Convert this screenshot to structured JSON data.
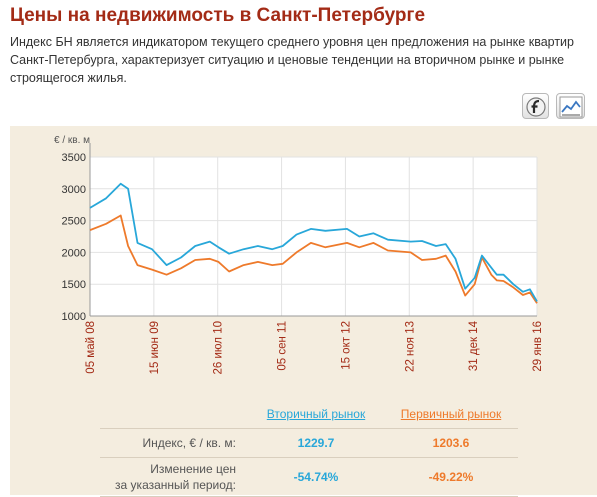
{
  "page": {
    "title": "Цены на недвижимость в Санкт-Петербурге",
    "description": "Индекс БН является индикатором текущего среднего уровня цен предложения на рынке квартир Санкт-Петербурга, характеризует ситуацию и ценовые тенденции на вторичном рынке и рынке строящегося жилья."
  },
  "toolbar": {
    "flash_icon": "flash-icon",
    "chart_icon": "line-chart-icon"
  },
  "colors": {
    "secondary": "#28a7d9",
    "primary": "#ee7a2b",
    "title": "#a32b16",
    "panel": "#f4eddf"
  },
  "chart_data": {
    "type": "line",
    "ylabel": "€ / кв. м",
    "ylim": [
      1000,
      3500
    ],
    "yticks": [
      1000,
      1500,
      2000,
      2500,
      3000,
      3500
    ],
    "xlim": [
      "2008-05-05",
      "2016-01-29"
    ],
    "xticks": [
      "05 май 08",
      "15 июн 09",
      "26 июл 10",
      "05 сен 11",
      "15 окт 12",
      "22 ноя 13",
      "31 дек 14",
      "29 янв 16"
    ],
    "grid": true,
    "series": [
      {
        "name": "Вторичный рынок",
        "color": "#28a7d9",
        "x": [
          "2008-05-05",
          "2008-08-15",
          "2008-11-15",
          "2009-01-01",
          "2009-03-01",
          "2009-06-01",
          "2009-09-01",
          "2009-12-01",
          "2010-03-01",
          "2010-06-01",
          "2010-07-26",
          "2010-10-01",
          "2011-01-01",
          "2011-04-01",
          "2011-07-01",
          "2011-09-05",
          "2011-12-01",
          "2012-03-01",
          "2012-06-01",
          "2012-10-15",
          "2013-01-01",
          "2013-04-01",
          "2013-07-01",
          "2013-11-22",
          "2014-02-01",
          "2014-05-01",
          "2014-07-01",
          "2014-09-01",
          "2014-11-01",
          "2014-12-31",
          "2015-02-15",
          "2015-04-15",
          "2015-05-20",
          "2015-07-01",
          "2015-09-01",
          "2015-11-01",
          "2015-12-15",
          "2016-01-29"
        ],
        "values": [
          2700,
          2850,
          3080,
          3000,
          2150,
          2050,
          1800,
          1920,
          2100,
          2170,
          2080,
          1980,
          2050,
          2100,
          2050,
          2100,
          2280,
          2370,
          2340,
          2370,
          2250,
          2300,
          2200,
          2170,
          2180,
          2100,
          2130,
          1900,
          1430,
          1600,
          1950,
          1760,
          1650,
          1650,
          1500,
          1380,
          1420,
          1230
        ]
      },
      {
        "name": "Первичный рынок",
        "color": "#ee7a2b",
        "x": [
          "2008-05-05",
          "2008-08-15",
          "2008-11-15",
          "2009-01-01",
          "2009-03-01",
          "2009-06-01",
          "2009-09-01",
          "2009-12-01",
          "2010-03-01",
          "2010-06-01",
          "2010-07-26",
          "2010-10-01",
          "2011-01-01",
          "2011-04-01",
          "2011-07-01",
          "2011-09-05",
          "2011-12-01",
          "2012-03-01",
          "2012-06-01",
          "2012-10-15",
          "2013-01-01",
          "2013-04-01",
          "2013-07-01",
          "2013-11-22",
          "2014-02-01",
          "2014-05-01",
          "2014-07-01",
          "2014-09-01",
          "2014-11-01",
          "2014-12-31",
          "2015-02-15",
          "2015-04-15",
          "2015-05-20",
          "2015-07-01",
          "2015-09-01",
          "2015-11-01",
          "2015-12-15",
          "2016-01-29"
        ],
        "values": [
          2350,
          2450,
          2580,
          2100,
          1800,
          1730,
          1650,
          1750,
          1880,
          1900,
          1850,
          1700,
          1800,
          1850,
          1800,
          1820,
          2000,
          2150,
          2080,
          2150,
          2080,
          2150,
          2030,
          2000,
          1880,
          1900,
          1950,
          1700,
          1320,
          1500,
          1920,
          1650,
          1560,
          1550,
          1450,
          1330,
          1370,
          1200
        ]
      }
    ]
  },
  "stats": {
    "col_secondary": "Вторичный рынок",
    "col_primary": "Первичный рынок",
    "row_index_label": "Индекс, € / кв. м:",
    "row_index_secondary": "1229.7",
    "row_index_primary": "1203.6",
    "row_change_label_1": "Изменение цен",
    "row_change_label_2": "за указанный период:",
    "row_change_secondary": "-54.74%",
    "row_change_primary": "-49.22%"
  }
}
